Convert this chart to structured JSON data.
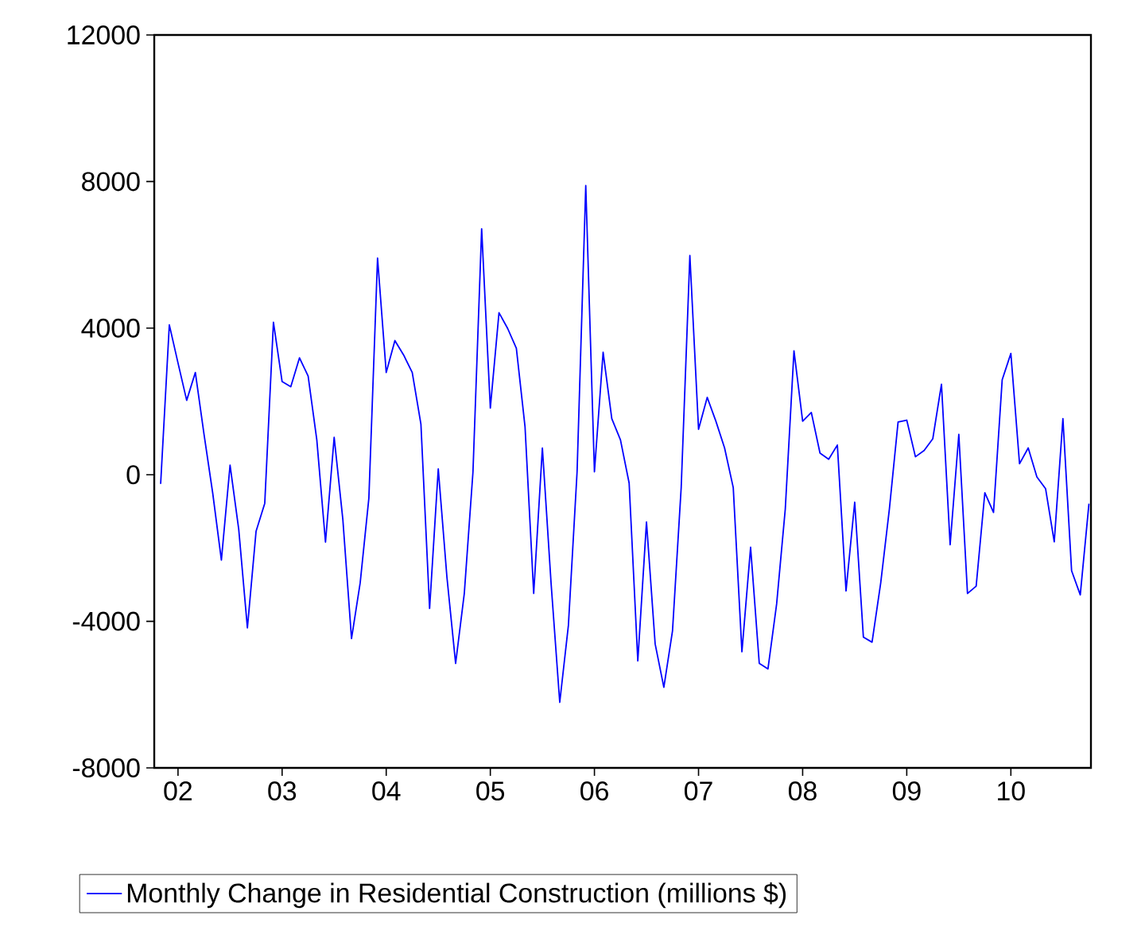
{
  "chart_data": {
    "type": "line",
    "x": [
      "2001-11",
      "2001-12",
      "2002-01",
      "2002-02",
      "2002-03",
      "2002-04",
      "2002-05",
      "2002-06",
      "2002-07",
      "2002-08",
      "2002-09",
      "2002-10",
      "2002-11",
      "2002-12",
      "2003-01",
      "2003-02",
      "2003-03",
      "2003-04",
      "2003-05",
      "2003-06",
      "2003-07",
      "2003-08",
      "2003-09",
      "2003-10",
      "2003-11",
      "2003-12",
      "2004-01",
      "2004-02",
      "2004-03",
      "2004-04",
      "2004-05",
      "2004-06",
      "2004-07",
      "2004-08",
      "2004-09",
      "2004-10",
      "2004-11",
      "2004-12",
      "2005-01",
      "2005-02",
      "2005-03",
      "2005-04",
      "2005-05",
      "2005-06",
      "2005-07",
      "2005-08",
      "2005-09",
      "2005-10",
      "2005-11",
      "2005-12",
      "2006-01",
      "2006-02",
      "2006-03",
      "2006-04",
      "2006-05",
      "2006-06",
      "2006-07",
      "2006-08",
      "2006-09",
      "2006-10",
      "2006-11",
      "2006-12",
      "2007-01",
      "2007-02",
      "2007-03",
      "2007-04",
      "2007-05",
      "2007-06",
      "2007-07",
      "2007-08",
      "2007-09",
      "2007-10",
      "2007-11",
      "2007-12",
      "2008-01",
      "2008-02",
      "2008-03",
      "2008-04",
      "2008-05",
      "2008-06",
      "2008-07",
      "2008-08",
      "2008-09",
      "2008-10",
      "2008-11",
      "2008-12",
      "2009-01",
      "2009-02",
      "2009-03",
      "2009-04",
      "2009-05",
      "2009-06",
      "2009-07",
      "2009-08",
      "2009-09",
      "2009-10",
      "2009-11",
      "2009-12",
      "2010-01",
      "2010-02",
      "2010-03",
      "2010-04",
      "2010-05",
      "2010-06",
      "2010-07",
      "2010-08",
      "2010-09",
      "2010-10"
    ],
    "series": [
      {
        "name": "Monthly Change in Residential Construction (millions $)",
        "color": "#0000ff",
        "values": [
          -250,
          4090,
          3050,
          2030,
          2790,
          1100,
          -500,
          -2330,
          260,
          -1490,
          -4180,
          -1540,
          -780,
          4160,
          2540,
          2400,
          3190,
          2690,
          950,
          -1840,
          1020,
          -1220,
          -4470,
          -2950,
          -640,
          5910,
          2790,
          3660,
          3270,
          2790,
          1380,
          -3650,
          160,
          -2800,
          -5150,
          -3240,
          80,
          6710,
          1820,
          4420,
          3990,
          3450,
          1310,
          -3240,
          730,
          -2950,
          -6210,
          -4110,
          80,
          7890,
          80,
          3340,
          1530,
          950,
          -230,
          -5080,
          -1290,
          -4620,
          -5800,
          -4260,
          -350,
          5980,
          1240,
          2110,
          1460,
          730,
          -350,
          -4830,
          -1980,
          -5150,
          -5300,
          -3530,
          -930,
          3380,
          1460,
          1700,
          590,
          420,
          810,
          -3170,
          -750,
          -4430,
          -4570,
          -2950,
          -930,
          1440,
          1490,
          490,
          660,
          980,
          2470,
          -1910,
          1100,
          -3240,
          -3040,
          -490,
          -1030,
          2590,
          3310,
          300,
          730,
          -60,
          -380,
          -1830,
          1530,
          -2620,
          -3280,
          -790
        ]
      }
    ],
    "xlim": [
      "2001-10-09",
      "2010-10-08"
    ],
    "xticks": [
      {
        "value": "2002-01",
        "label": "02"
      },
      {
        "value": "2003-01",
        "label": "03"
      },
      {
        "value": "2004-01",
        "label": "04"
      },
      {
        "value": "2005-01",
        "label": "05"
      },
      {
        "value": "2006-01",
        "label": "06"
      },
      {
        "value": "2007-01",
        "label": "07"
      },
      {
        "value": "2008-01",
        "label": "08"
      },
      {
        "value": "2009-01",
        "label": "09"
      },
      {
        "value": "2010-01",
        "label": "10"
      }
    ],
    "ylim": [
      -8000,
      12000
    ],
    "yticks": [
      -8000,
      -4000,
      0,
      4000,
      8000,
      12000
    ],
    "grid": false,
    "legend": "bottom",
    "line_style": "solid",
    "marker": "none"
  }
}
